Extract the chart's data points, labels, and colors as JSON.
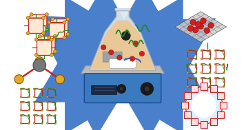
{
  "fig_width": 3.57,
  "fig_height": 1.89,
  "dpi": 100,
  "bg_color": "#ffffff",
  "flask_liquid": "#f4c07a",
  "flask_glass": "#dde8f0",
  "flask_outline": "#aaaaaa",
  "hotplate_blue": "#3a7abf",
  "hotplate_dark": "#1a4a8f",
  "hotplate_top": "#999999",
  "hotplate_top_light": "#bbbbbb",
  "arrow_color": "#4a7fcb",
  "mof_red": "#cc2222",
  "mof_red2": "#dd1111",
  "mof_green": "#228822",
  "mof_yellow": "#ddaa00",
  "node_gold": "#e8a820",
  "node_gray": "#777777",
  "graphene_gray": "#888888",
  "graphene_dark": "#555555",
  "ring_light": "#ddeeff"
}
